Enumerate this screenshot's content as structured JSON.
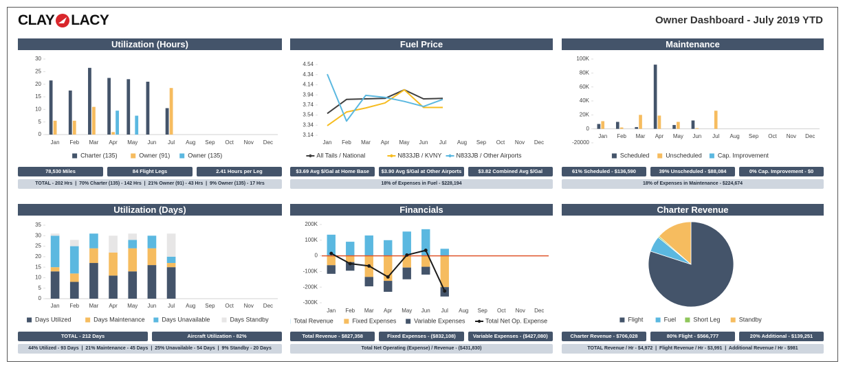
{
  "header": {
    "logo_left": "CLAY",
    "logo_right": "LACY",
    "title": "Owner Dashboard - July 2019 YTD"
  },
  "chart_data": [
    {
      "type": "bar",
      "title": "Utilization (Hours)",
      "categories": [
        "Jan",
        "Feb",
        "Mar",
        "Apr",
        "May",
        "Jun",
        "Jul",
        "Aug",
        "Sep",
        "Oct",
        "Nov",
        "Dec"
      ],
      "series": [
        {
          "name": "Charter (135)",
          "color": "#44546a",
          "values": [
            21.5,
            17.5,
            26.5,
            22.5,
            22,
            21,
            10.5,
            null,
            null,
            null,
            null,
            null
          ]
        },
        {
          "name": "Owner (91)",
          "color": "#f6bc5f",
          "values": [
            5.5,
            5.5,
            11,
            1,
            null,
            null,
            18.5,
            null,
            null,
            null,
            null,
            null
          ]
        },
        {
          "name": "Owner (135)",
          "color": "#5bb8e0",
          "values": [
            null,
            null,
            null,
            9.5,
            7.5,
            null,
            null,
            null,
            null,
            null,
            null,
            null
          ]
        }
      ],
      "ylim": [
        0,
        30
      ],
      "yticks": [
        0,
        5,
        10,
        15,
        20,
        25,
        30
      ],
      "grid": false
    },
    {
      "type": "line",
      "title": "Fuel Price",
      "categories": [
        "Jan",
        "Feb",
        "Mar",
        "Apr",
        "May",
        "Jun",
        "Jul",
        "Aug",
        "Sep",
        "Oct",
        "Nov",
        "Dec"
      ],
      "series": [
        {
          "name": "All Tails / National",
          "color": "#404040",
          "values": [
            3.57,
            3.85,
            3.86,
            3.87,
            4.04,
            3.86,
            3.87,
            null,
            null,
            null,
            null,
            null
          ]
        },
        {
          "name": "N833JB / KVNY",
          "color": "#f6bc1f",
          "values": [
            3.33,
            3.6,
            3.68,
            3.78,
            4.04,
            3.69,
            3.69,
            null,
            null,
            null,
            null,
            null
          ]
        },
        {
          "name": "N833JB / Other Airports",
          "color": "#5bb8e0",
          "values": [
            4.35,
            3.42,
            3.93,
            3.89,
            3.81,
            3.71,
            3.85,
            null,
            null,
            null,
            null,
            null
          ]
        }
      ],
      "ylim": [
        3.14,
        4.54
      ],
      "yticks": [
        3.14,
        3.34,
        3.54,
        3.74,
        3.94,
        4.14,
        4.34,
        4.54
      ],
      "grid": false
    },
    {
      "type": "bar",
      "title": "Maintenance",
      "categories": [
        "Jan",
        "Feb",
        "Mar",
        "Apr",
        "May",
        "Jun",
        "Jul",
        "Aug",
        "Sep",
        "Oct",
        "Nov",
        "Dec"
      ],
      "series": [
        {
          "name": "Scheduled",
          "color": "#44546a",
          "values": [
            7000,
            10000,
            2500,
            92000,
            5500,
            12000,
            null,
            null,
            null,
            null,
            null,
            null
          ]
        },
        {
          "name": "Unscheduled",
          "color": "#f6bc5f",
          "values": [
            11000,
            2000,
            20000,
            19000,
            10000,
            1000,
            26000,
            null,
            null,
            null,
            null,
            null
          ]
        },
        {
          "name": "Cap. Improvement",
          "color": "#5bb8e0",
          "values": [
            null,
            null,
            null,
            null,
            null,
            null,
            null,
            null,
            null,
            null,
            null,
            null
          ]
        }
      ],
      "ylim": [
        -20000,
        100000
      ],
      "yticks": [
        -20000,
        0,
        {
          "value": 20000,
          "label": "20K"
        },
        {
          "value": 40000,
          "label": "40K"
        },
        {
          "value": 60000,
          "label": "60K"
        },
        {
          "value": 80000,
          "label": "80K"
        },
        {
          "value": 100000,
          "label": "100K"
        }
      ],
      "grid": false
    },
    {
      "type": "bar",
      "title": "Utilization (Days)",
      "stacked": true,
      "categories": [
        "Jan",
        "Feb",
        "Mar",
        "Apr",
        "May",
        "Jun",
        "Jul",
        "Aug",
        "Sep",
        "Oct",
        "Nov",
        "Dec"
      ],
      "series": [
        {
          "name": "Days Utilized",
          "color": "#44546a",
          "values": [
            13,
            8,
            17,
            11,
            13,
            16,
            15,
            null,
            null,
            null,
            null,
            null
          ]
        },
        {
          "name": "Days Maintenance",
          "color": "#f6bc5f",
          "values": [
            2,
            4,
            7,
            11,
            11,
            8,
            2,
            null,
            null,
            null,
            null,
            null
          ]
        },
        {
          "name": "Days Unavailable",
          "color": "#5bb8e0",
          "values": [
            15,
            13,
            7,
            0,
            4,
            6,
            3,
            null,
            null,
            null,
            null,
            null
          ]
        },
        {
          "name": "Days Standby",
          "color": "#e7e6e6",
          "values": [
            1,
            3,
            0,
            8,
            3,
            0,
            11,
            null,
            null,
            null,
            null,
            null
          ]
        }
      ],
      "ylim": [
        0,
        35
      ],
      "yticks": [
        0,
        5,
        10,
        15,
        20,
        25,
        30,
        35
      ],
      "grid": false
    },
    {
      "type": "bar",
      "title": "Financials",
      "stacked": true,
      "zero_line_color": "#e0542a",
      "categories": [
        "Jan",
        "Feb",
        "Mar",
        "Apr",
        "May",
        "Jun",
        "Jul",
        "Aug",
        "Sep",
        "Oct",
        "Nov",
        "Dec"
      ],
      "series": [
        {
          "name": "Total Revenue",
          "color": "#5bb8e0",
          "values": [
            135000,
            90000,
            130000,
            100000,
            155000,
            170000,
            45000,
            null,
            null,
            null,
            null,
            null
          ]
        },
        {
          "name": "Fixed Expenses",
          "color": "#f6bc5f",
          "values": [
            -60000,
            -40000,
            -135000,
            -160000,
            -75000,
            -70000,
            -200000,
            null,
            null,
            null,
            null,
            null
          ]
        },
        {
          "name": "Variable Expenses",
          "color": "#44546a",
          "values": [
            -55000,
            -55000,
            -60000,
            -70000,
            -75000,
            -50000,
            -60000,
            null,
            null,
            null,
            null,
            null
          ]
        },
        {
          "name": "Total Net Op. Expense",
          "color": "#1a1a1a",
          "type": "line",
          "marker": true,
          "values": [
            15000,
            -50000,
            -65000,
            -135000,
            5000,
            35000,
            -225000,
            null,
            null,
            null,
            null,
            null
          ]
        }
      ],
      "ylim": [
        -300000,
        200000
      ],
      "yticks": [
        {
          "value": -300000,
          "label": "-300K"
        },
        {
          "value": -200000,
          "label": "-200K"
        },
        {
          "value": -100000,
          "label": "-100K"
        },
        0,
        {
          "value": 100000,
          "label": "100K"
        },
        {
          "value": 200000,
          "label": "200K"
        }
      ],
      "grid": false
    },
    {
      "type": "pie",
      "title": "Charter Revenue",
      "categories": [
        "Flight",
        "Fuel",
        "Short Leg",
        "Standby"
      ],
      "values": [
        80,
        6,
        0.5,
        13.5
      ],
      "colors": [
        "#44546a",
        "#5bb8e0",
        "#8fc65b",
        "#f6bc5f"
      ]
    }
  ],
  "panels": [
    {
      "stats": [
        "78,530 Miles",
        "84 Flight Legs",
        "2.41 Hours per Leg"
      ],
      "summary": "TOTAL - 202 Hrs  |  70% Charter (135) - 142 Hrs  |  21% Owner (91) - 43 Hrs  |  9% Owner (135) - 17 Hrs"
    },
    {
      "stats": [
        "$3.69 Avg $/Gal at Home Base",
        "$3.90 Avg $/Gal at Other Airports",
        "$3.82 Combined Avg $/Gal"
      ],
      "summary": "18% of Expenses in Fuel - $228,194"
    },
    {
      "stats": [
        "61% Scheduled - $136,590",
        "39% Unscheduled - $88,084",
        "0% Cap. Improvement - $0"
      ],
      "summary": "18% of Expenses in Maintenance - $224,674"
    },
    {
      "stats": [
        "TOTAL - 212 Days",
        "Aircraft Utilization - 82%"
      ],
      "summary": "44% Utilized - 93 Days  |  21% Maintenance - 45 Days  |  25% Unavailable - 54 Days  |  9% Standby - 20 Days"
    },
    {
      "stats": [
        "Total Revenue - $827,358",
        "Fixed Expenses - ($832,108)",
        "Variable Expenses - ($427,080)"
      ],
      "summary": "Total Net Operating (Expense) / Revenue - ($431,830)"
    },
    {
      "stats": [
        "Charter Revenue - $706,028",
        "80% Flight - $566,777",
        "20% Additional - $139,251"
      ],
      "summary": "TOTAL Revenue / Hr - $4,972  |  Flight Revenue / Hr - $3,991  |  Additional Revenue / Hr - $981"
    }
  ]
}
